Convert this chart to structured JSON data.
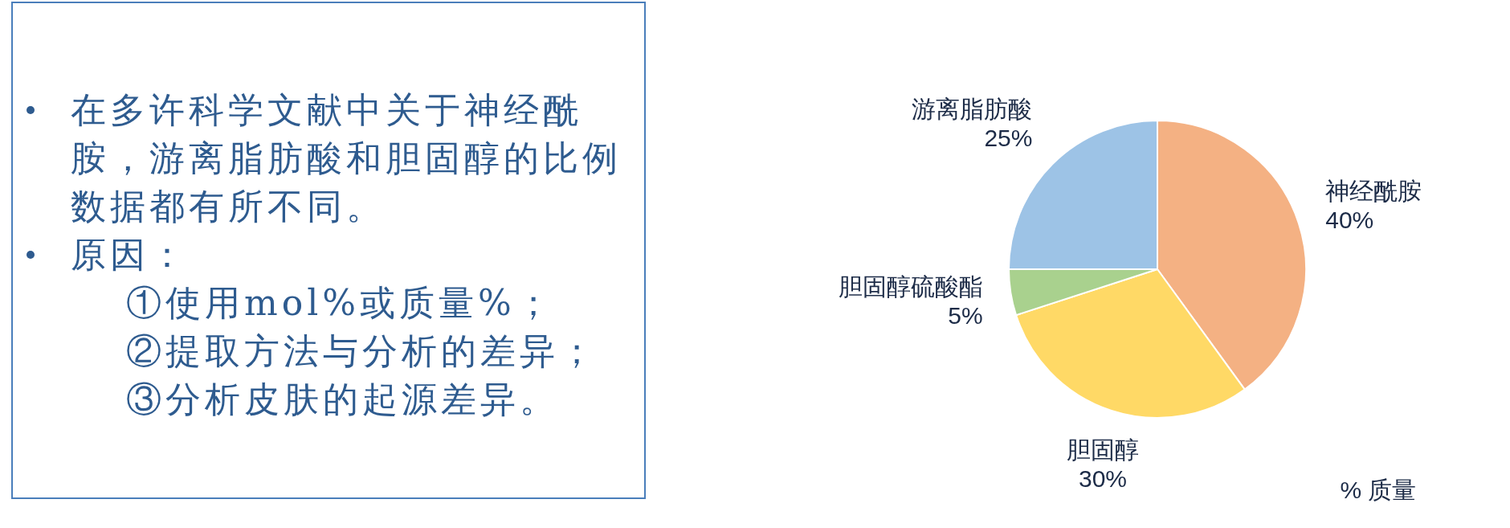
{
  "chart_data": [
    {
      "type": "other",
      "annotations": [
        "在多许科学文献中关于神经酰胺，游离脂肪酸和胆固醇的比例数据都有所不同。",
        "原因：\n①使用mol%或质量%；\n②提取方法与分析的差异；\n③分析皮肤的起源差异。"
      ]
    },
    {
      "type": "pie",
      "categories": [
        "神经酰胺",
        "胆固醇",
        "胆固醇硫酸酯",
        "游离脂肪酸"
      ],
      "values": [
        40,
        30,
        5,
        25
      ],
      "colors": [
        "#f4b183",
        "#ffd966",
        "#a9d18e",
        "#9dc3e6"
      ],
      "value_labels": [
        "40%",
        "30%",
        "5%",
        "25%"
      ],
      "annotations": [
        "% 质量"
      ]
    }
  ]
}
